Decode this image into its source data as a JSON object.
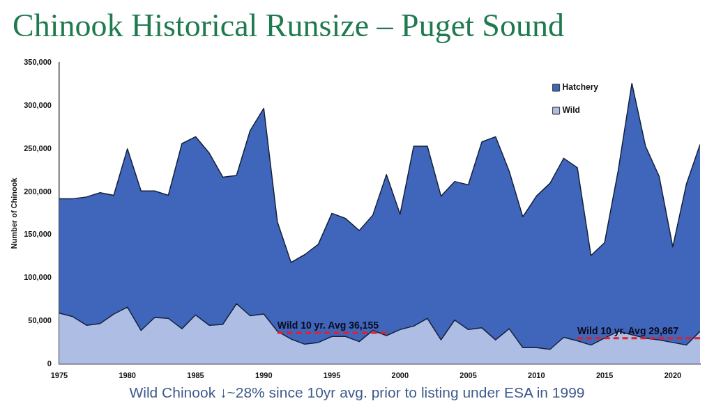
{
  "chart_data": {
    "type": "area",
    "title": "Chinook Historical Runsize – Puget Sound",
    "ylabel": "Number of Chinook",
    "stacked": true,
    "legend": "top right",
    "grid": false,
    "marker": "none",
    "x": [
      1975,
      1976,
      1977,
      1978,
      1979,
      1980,
      1981,
      1982,
      1983,
      1984,
      1985,
      1986,
      1987,
      1988,
      1989,
      1990,
      1991,
      1992,
      1993,
      1994,
      1995,
      1996,
      1997,
      1998,
      1999,
      2000,
      2001,
      2002,
      2003,
      2004,
      2005,
      2006,
      2007,
      2008,
      2009,
      2010,
      2011,
      2012,
      2013,
      2014,
      2015,
      2016,
      2017,
      2018,
      2019,
      2020,
      2021,
      2022
    ],
    "xlim": [
      1975,
      2022
    ],
    "xticks": [
      1975,
      1980,
      1985,
      1990,
      1995,
      2000,
      2005,
      2010,
      2015,
      2020
    ],
    "ylim": [
      0,
      350000
    ],
    "yticks": [
      0,
      {
        "value": 50000,
        "label": "50,000"
      },
      {
        "value": 100000,
        "label": "100,000"
      },
      {
        "value": 150000,
        "label": "150,000"
      },
      {
        "value": 200000,
        "label": "200,000"
      },
      {
        "value": 250000,
        "label": "250,000"
      },
      {
        "value": 300000,
        "label": "300,000"
      },
      {
        "value": 350000,
        "label": "350,000"
      }
    ],
    "series": [
      {
        "name": "Wild",
        "color": "#aebde4",
        "values": [
          59000,
          55000,
          45000,
          47000,
          58000,
          66000,
          39000,
          54000,
          53000,
          41000,
          57000,
          45000,
          46000,
          70000,
          56000,
          58000,
          38000,
          29000,
          23000,
          25000,
          32000,
          32000,
          26000,
          39000,
          33000,
          40000,
          44000,
          53000,
          28000,
          51000,
          40000,
          42000,
          28000,
          41000,
          19000,
          19000,
          17000,
          31000,
          27000,
          22000,
          30000,
          38000,
          34000,
          30000,
          28000,
          25000,
          22000,
          38000
        ]
      },
      {
        "name": "Hatchery",
        "color": "#3f66bb",
        "values": [
          133000,
          137000,
          149000,
          152000,
          138000,
          184000,
          162000,
          147000,
          143000,
          215000,
          207000,
          200000,
          171000,
          149000,
          215000,
          239000,
          127000,
          89000,
          104000,
          114000,
          143000,
          137000,
          129000,
          134000,
          187000,
          134000,
          209000,
          200000,
          167000,
          161000,
          168000,
          216000,
          236000,
          183000,
          152000,
          176000,
          193000,
          208000,
          201000,
          104000,
          111000,
          187000,
          292000,
          223000,
          190000,
          111000,
          187000,
          217000
        ]
      },
      {
        "type": "line",
        "color": "#e0202a",
        "line_style": "dashed",
        "x": [
          1991,
          1999
        ],
        "values": [
          36155,
          36155
        ]
      },
      {
        "type": "line",
        "color": "#e0202a",
        "line_style": "dashed",
        "x": [
          2013,
          2022
        ],
        "values": [
          29867,
          29867
        ]
      }
    ],
    "annotations": [
      {
        "text": "Wild 10 yr. Avg 36,155",
        "x": 1991,
        "y": 36155
      },
      {
        "text": "Wild 10 yr. Avg 29,867",
        "x": 2013,
        "y": 29867
      },
      "Wild Chinook ↓~28% since 10yr avg. prior to listing under ESA in 1999"
    ]
  }
}
